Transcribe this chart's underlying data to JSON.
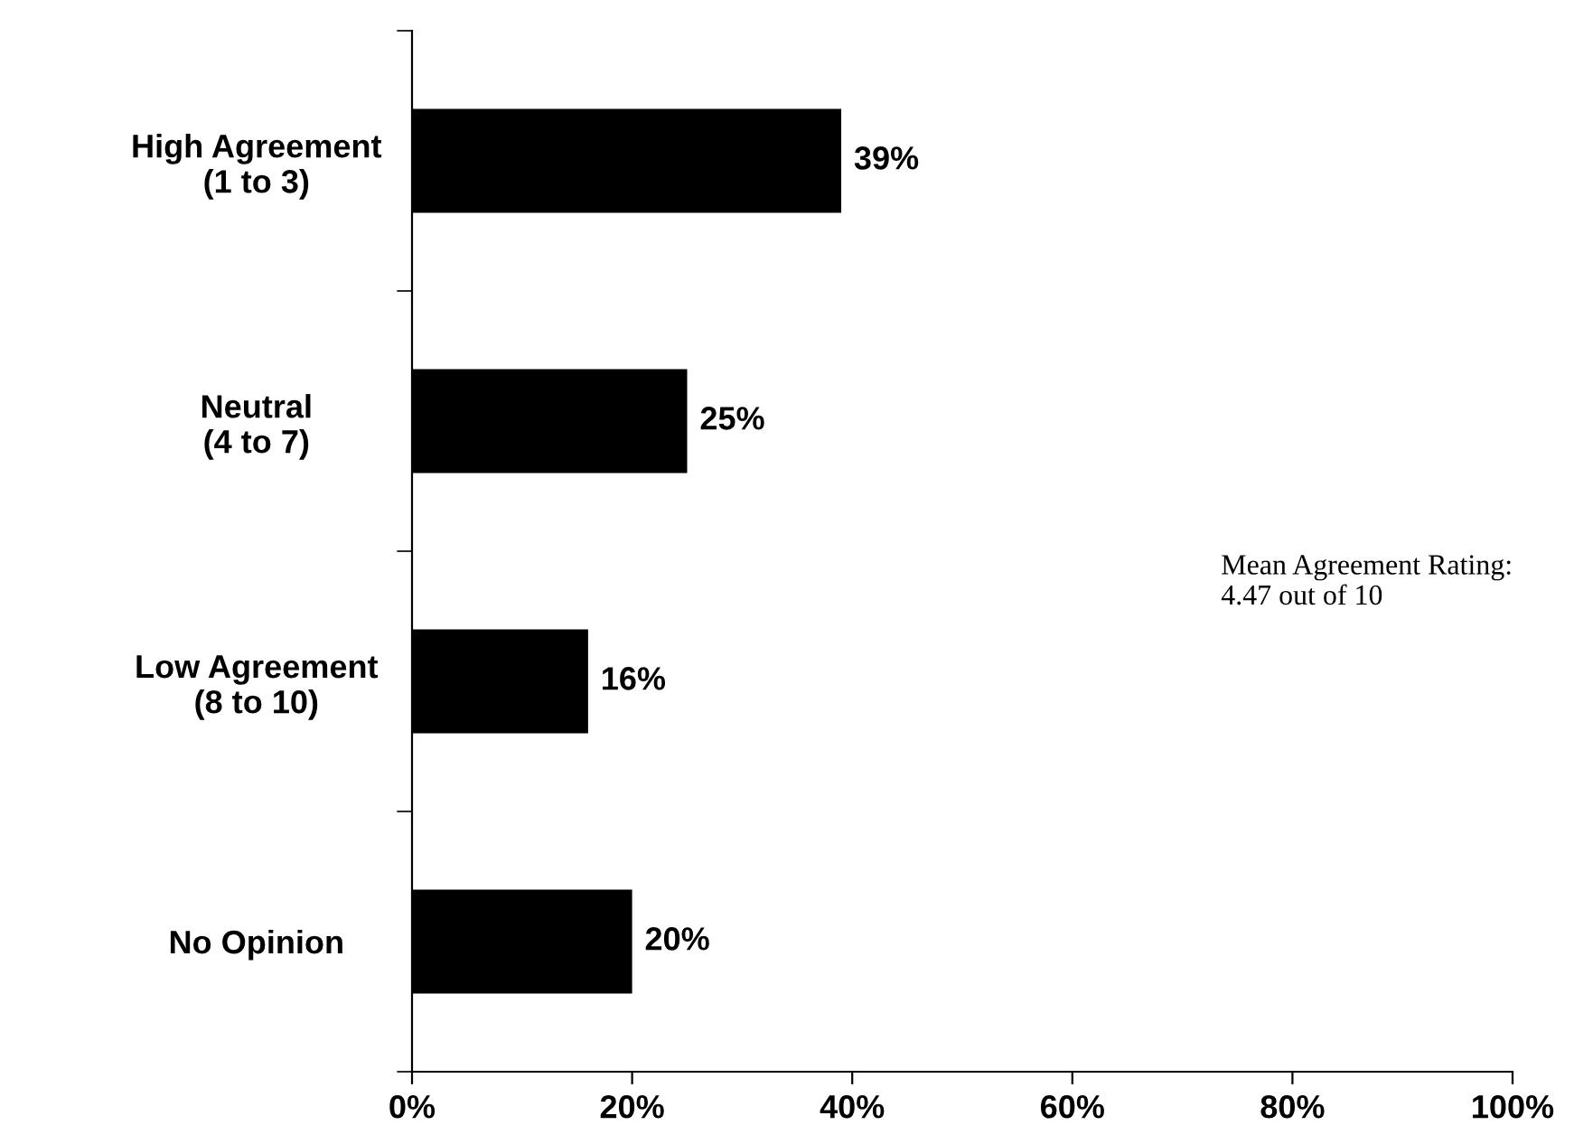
{
  "chart_data": {
    "type": "bar",
    "orientation": "horizontal",
    "categories": [
      "High Agreement\n(1 to 3)",
      "Neutral\n(4 to 7)",
      "Low Agreement\n(8 to 10)",
      "No Opinion"
    ],
    "values": [
      39,
      25,
      16,
      20
    ],
    "color": "#000000",
    "value_labels": [
      "39%",
      "25%",
      "16%",
      "20%"
    ],
    "xlim": [
      0,
      100
    ],
    "xticks": [
      {
        "value": 0,
        "label": "0%"
      },
      {
        "value": 20,
        "label": "20%"
      },
      {
        "value": 40,
        "label": "40%"
      },
      {
        "value": 60,
        "label": "60%"
      },
      {
        "value": 80,
        "label": "80%"
      },
      {
        "value": 100,
        "label": "100%"
      }
    ],
    "annotations": [
      "Mean Agreement Rating:\n4.47 out of 10"
    ],
    "grid": false
  }
}
